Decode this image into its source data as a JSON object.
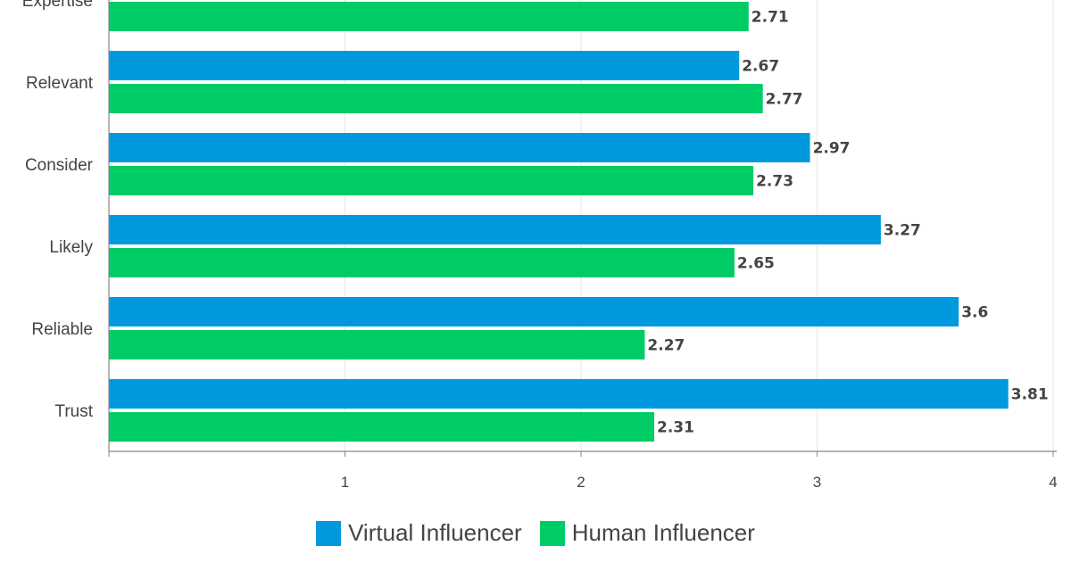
{
  "chart_data": {
    "type": "bar",
    "orientation": "horizontal",
    "categories": [
      "Expertise",
      "Relevant",
      "Consider",
      "Likely",
      "Reliable",
      "Trust"
    ],
    "series": [
      {
        "name": "Virtual Influencer",
        "color": "#0099dd",
        "values": [
          null,
          2.67,
          2.97,
          3.27,
          3.6,
          3.81
        ]
      },
      {
        "name": "Human Influencer",
        "color": "#00cc66",
        "values": [
          2.71,
          2.77,
          2.73,
          2.65,
          2.27,
          2.31
        ]
      }
    ],
    "xlim": [
      0,
      4
    ],
    "xticks": [
      1,
      2,
      3,
      4
    ],
    "grid": true,
    "legend_position": "bottom-center"
  }
}
